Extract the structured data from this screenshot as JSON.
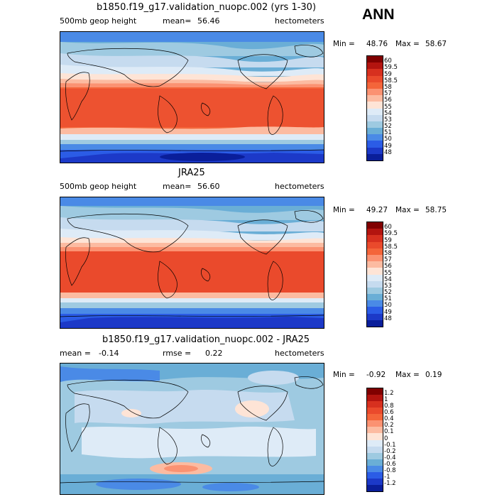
{
  "season": "ANN",
  "panels": [
    {
      "title": "b1850.f19_g17.validation_nuopc.002 (yrs 1-30)",
      "left_label": "500mb geop height",
      "mean_label": "mean=",
      "mean_value": "56.46",
      "units": "hectometers",
      "min_label": "Min =",
      "min_value": "48.76",
      "max_label": "Max =",
      "max_value": "58.67",
      "colorbar_levels": [
        "60",
        "59.5",
        "59",
        "58.5",
        "58",
        "57",
        "56",
        "55",
        "54",
        "53",
        "52",
        "51",
        "50",
        "49",
        "48"
      ]
    },
    {
      "title": "JRA25",
      "left_label": "500mb geop height",
      "mean_label": "mean=",
      "mean_value": "56.60",
      "units": "hectometers",
      "min_label": "Min =",
      "min_value": "49.27",
      "max_label": "Max =",
      "max_value": "58.75",
      "colorbar_levels": [
        "60",
        "59.5",
        "59",
        "58.5",
        "58",
        "57",
        "56",
        "55",
        "54",
        "53",
        "52",
        "51",
        "50",
        "49",
        "48"
      ]
    },
    {
      "title": "b1850.f19_g17.validation_nuopc.002 - JRA25",
      "mean_label": "mean =",
      "mean_value": "-0.14",
      "rmse_label": "rmse =",
      "rmse_value": "0.22",
      "units": "hectometers",
      "min_label": "Min =",
      "min_value": "-0.92",
      "max_label": "Max =",
      "max_value": "0.19",
      "colorbar_levels": [
        "1.2",
        "1",
        "0.8",
        "0.6",
        "0.4",
        "0.2",
        "0.1",
        "0",
        "-0.1",
        "-0.2",
        "-0.4",
        "-0.6",
        "-0.8",
        "-1",
        "-1.2"
      ]
    }
  ],
  "colors": {
    "abs_scale": [
      "#800000",
      "#b3140f",
      "#d7301f",
      "#ea4a2c",
      "#f4653a",
      "#fb9272",
      "#fcbba1",
      "#fee4d6",
      "#deebf7",
      "#c6dbef",
      "#9ecae1",
      "#6aaed6",
      "#4a8ae6",
      "#2b5ce6",
      "#1c39c8",
      "#0a1e9a",
      "#00006a"
    ],
    "diff_scale": [
      "#800000",
      "#b3140f",
      "#d7301f",
      "#ea4a2c",
      "#f4653a",
      "#fb9272",
      "#fcbba1",
      "#fee4d6",
      "#deebf7",
      "#c6dbef",
      "#9ecae1",
      "#6aaed6",
      "#4a8ae6",
      "#2b5ce6",
      "#1c39c8",
      "#0a1e9a",
      "#00006a"
    ]
  }
}
